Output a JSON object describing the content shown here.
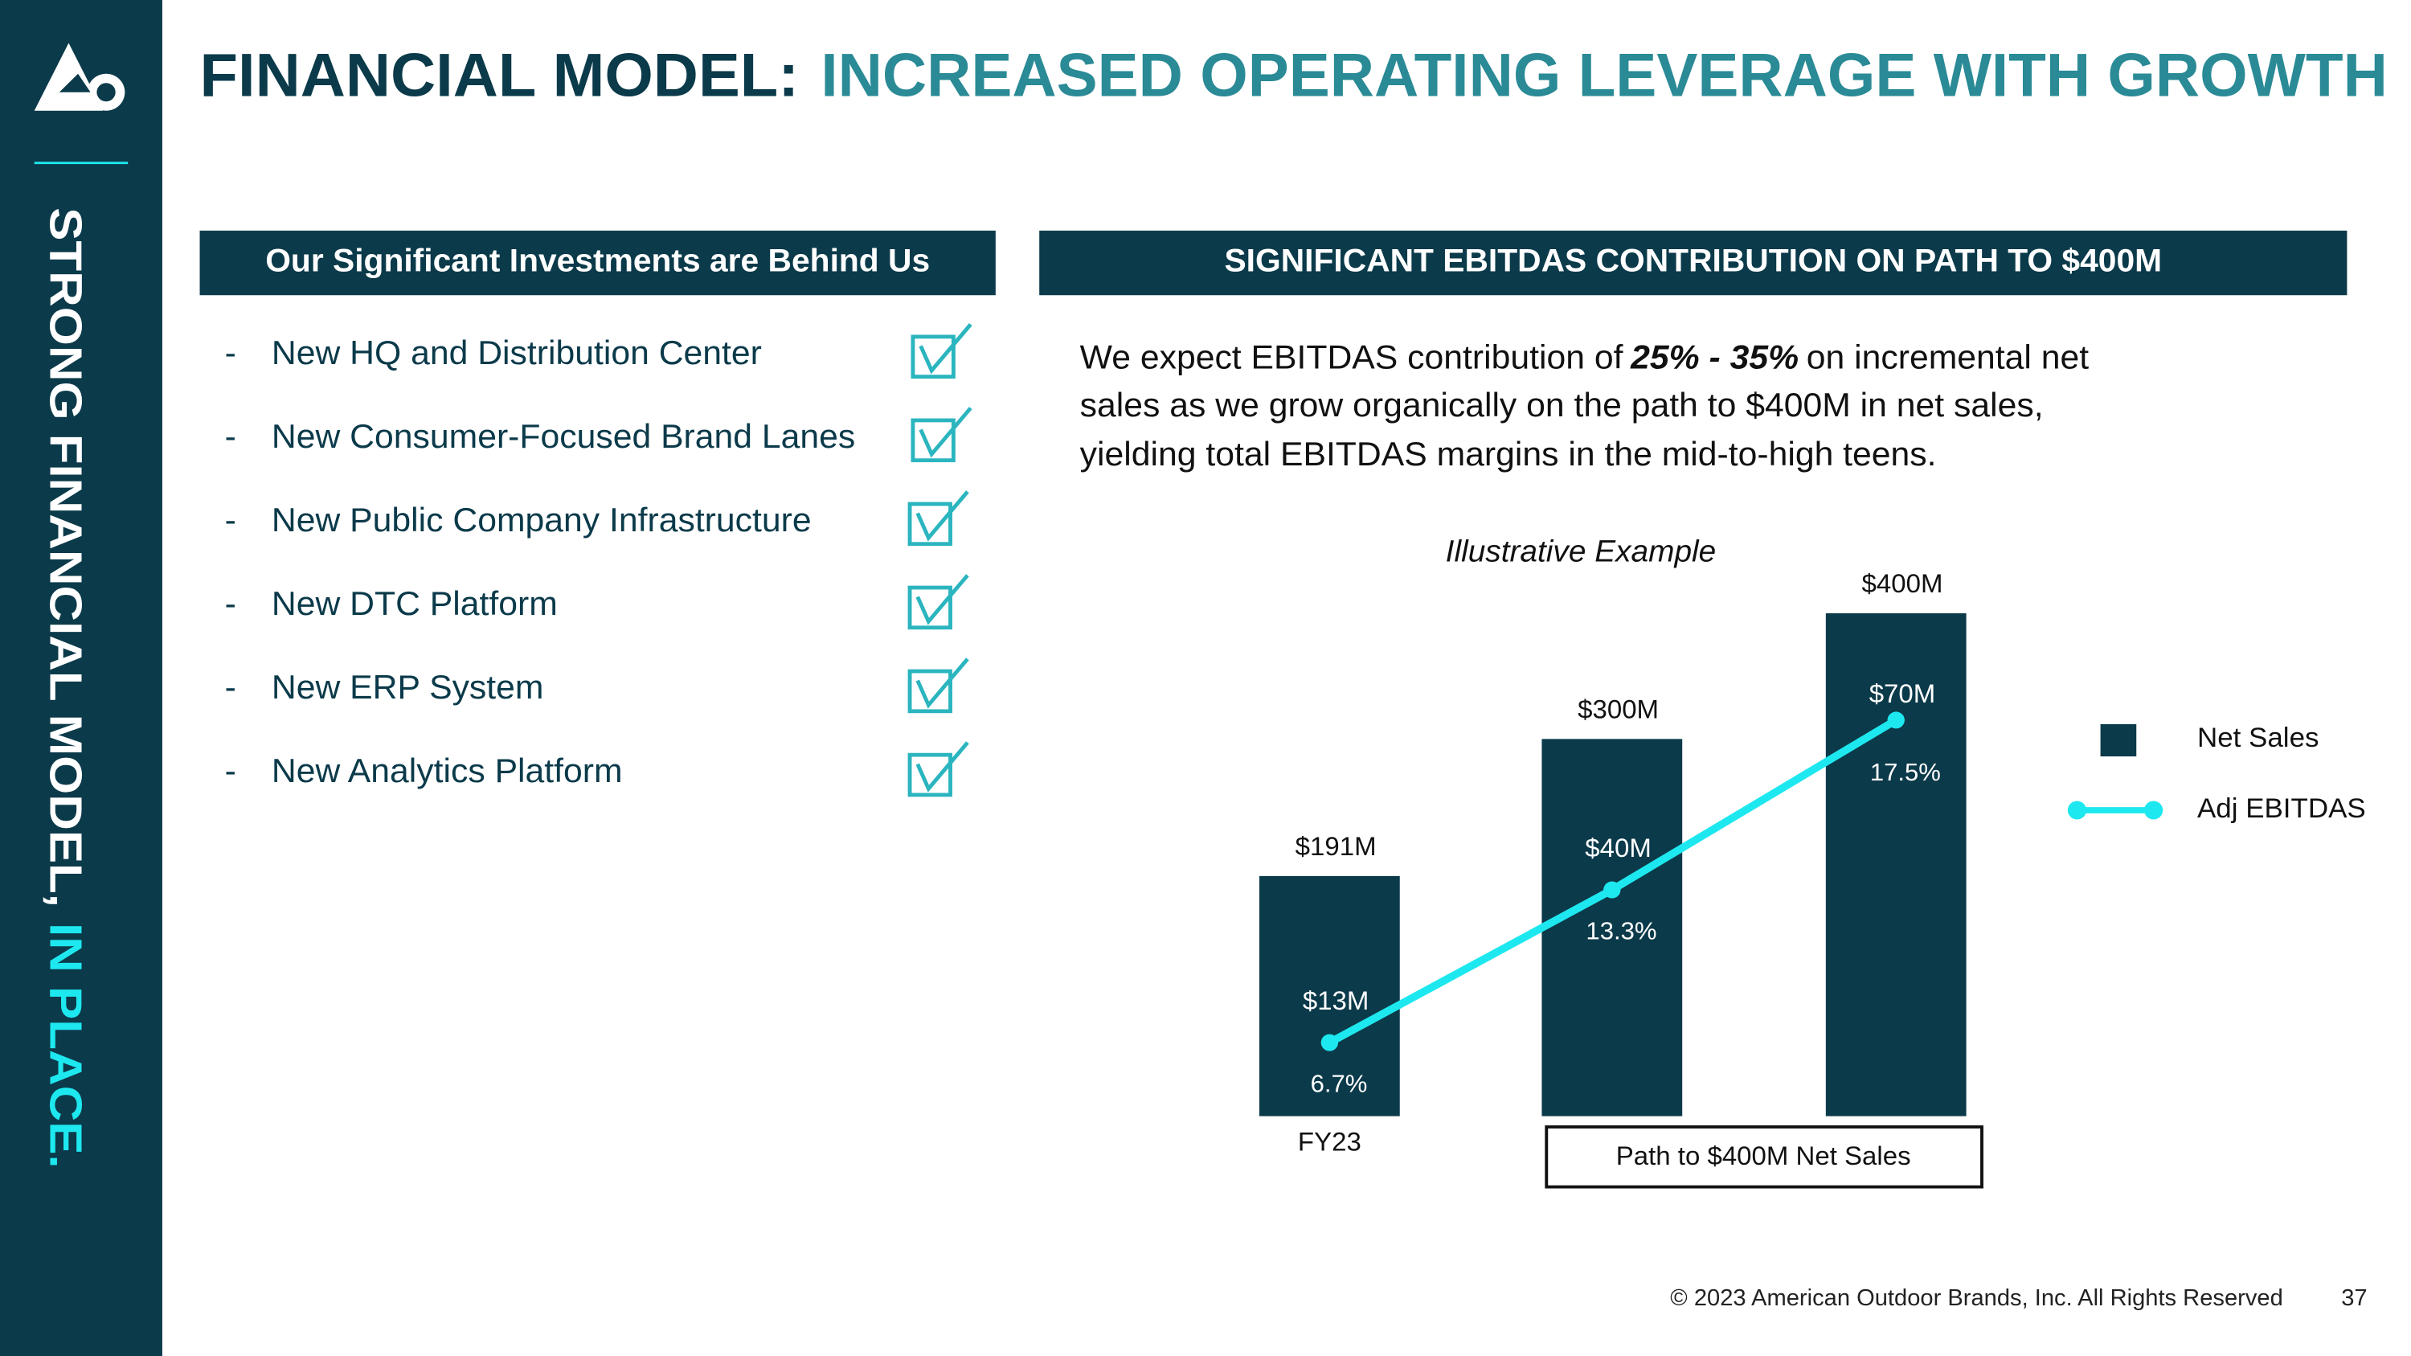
{
  "header": {
    "title_lead": "FINANCIAL MODEL:",
    "title_rest": "INCREASED OPERATING LEVERAGE WITH GROWTH"
  },
  "sidebar": {
    "text_lead": "STRONG FINANCIAL MODEL,",
    "text_accent": "IN PLACE."
  },
  "left_panel": {
    "heading": "Our Significant Investments are Behind Us",
    "items": [
      "New HQ and Distribution Center",
      "New Consumer-Focused Brand Lanes",
      "New Public Company Infrastructure",
      "New DTC Platform",
      "New ERP System",
      "New Analytics Platform"
    ]
  },
  "right_panel": {
    "heading": "SIGNIFICANT EBITDAS CONTRIBUTION ON PATH TO $400M",
    "paragraph": [
      [
        "We expect EBITDAS contribution of",
        "25% - 35%",
        "on incremental net"
      ],
      [
        "sales as we grow organically on the path to $400M in net sales,"
      ],
      [
        "yielding total EBITDAS margins in the mid-to-high teens."
      ]
    ]
  },
  "chart_data": {
    "type": "bar-line",
    "subtitle": "Illustrative Example",
    "categories": [
      "FY23",
      null,
      null
    ],
    "group_label": "Path to $400M Net Sales",
    "ylim": [
      0,
      450
    ],
    "y2lim": [
      0,
      100
    ],
    "series": [
      {
        "name": "Net Sales",
        "type": "bar",
        "color": "#0b3a4a",
        "values": [
          191,
          300,
          400
        ],
        "value_labels": [
          "$191M",
          "$300M",
          "$400M"
        ]
      },
      {
        "name": "Adj EBITDAS",
        "type": "line",
        "axis": "y2",
        "color": "#1ee8ef",
        "values": [
          13,
          40,
          70
        ],
        "value_labels": [
          "$13M",
          "$40M",
          "$70M"
        ]
      }
    ],
    "margins": {
      "values": [
        6.7,
        13.3,
        17.5
      ],
      "value_labels": [
        "6.7%",
        "13.3%",
        "17.5%"
      ]
    }
  },
  "footer": {
    "copyright": "© 2023 American Outdoor Brands, Inc. All Rights Reserved",
    "page": "37"
  }
}
